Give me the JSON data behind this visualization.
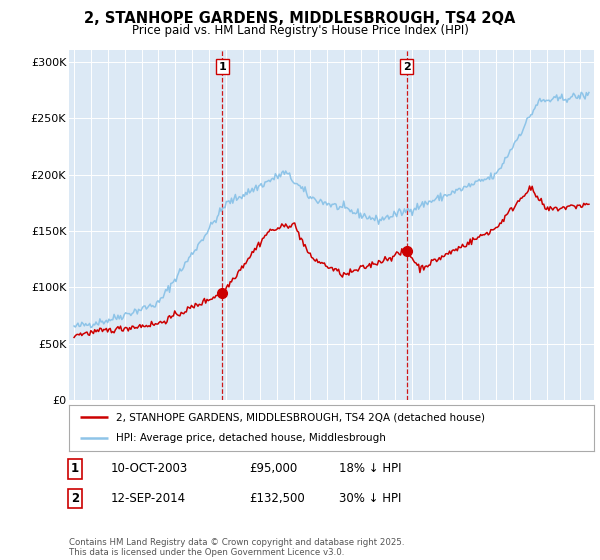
{
  "title": "2, STANHOPE GARDENS, MIDDLESBROUGH, TS4 2QA",
  "subtitle": "Price paid vs. HM Land Registry's House Price Index (HPI)",
  "ylabel_ticks": [
    "£0",
    "£50K",
    "£100K",
    "£150K",
    "£200K",
    "£250K",
    "£300K"
  ],
  "ytick_values": [
    0,
    50000,
    100000,
    150000,
    200000,
    250000,
    300000
  ],
  "ylim": [
    0,
    310000
  ],
  "xlim_start": 1994.7,
  "xlim_end": 2025.8,
  "purchase1_x": 2003.78,
  "purchase1_y": 95000,
  "purchase2_x": 2014.71,
  "purchase2_y": 132500,
  "legend_line1": "2, STANHOPE GARDENS, MIDDLESBROUGH, TS4 2QA (detached house)",
  "legend_line2": "HPI: Average price, detached house, Middlesbrough",
  "footer": "Contains HM Land Registry data © Crown copyright and database right 2025.\nThis data is licensed under the Open Government Licence v3.0.",
  "hpi_color": "#8ec4e8",
  "price_color": "#cc0000",
  "bg_color": "#dce9f5",
  "plot_bg": "#ffffff",
  "dashed_color": "#cc0000",
  "table_rows": [
    {
      "label": "1",
      "date": "10-OCT-2003",
      "price": "£95,000",
      "pct": "18% ↓ HPI"
    },
    {
      "label": "2",
      "date": "12-SEP-2014",
      "price": "£132,500",
      "pct": "30% ↓ HPI"
    }
  ]
}
